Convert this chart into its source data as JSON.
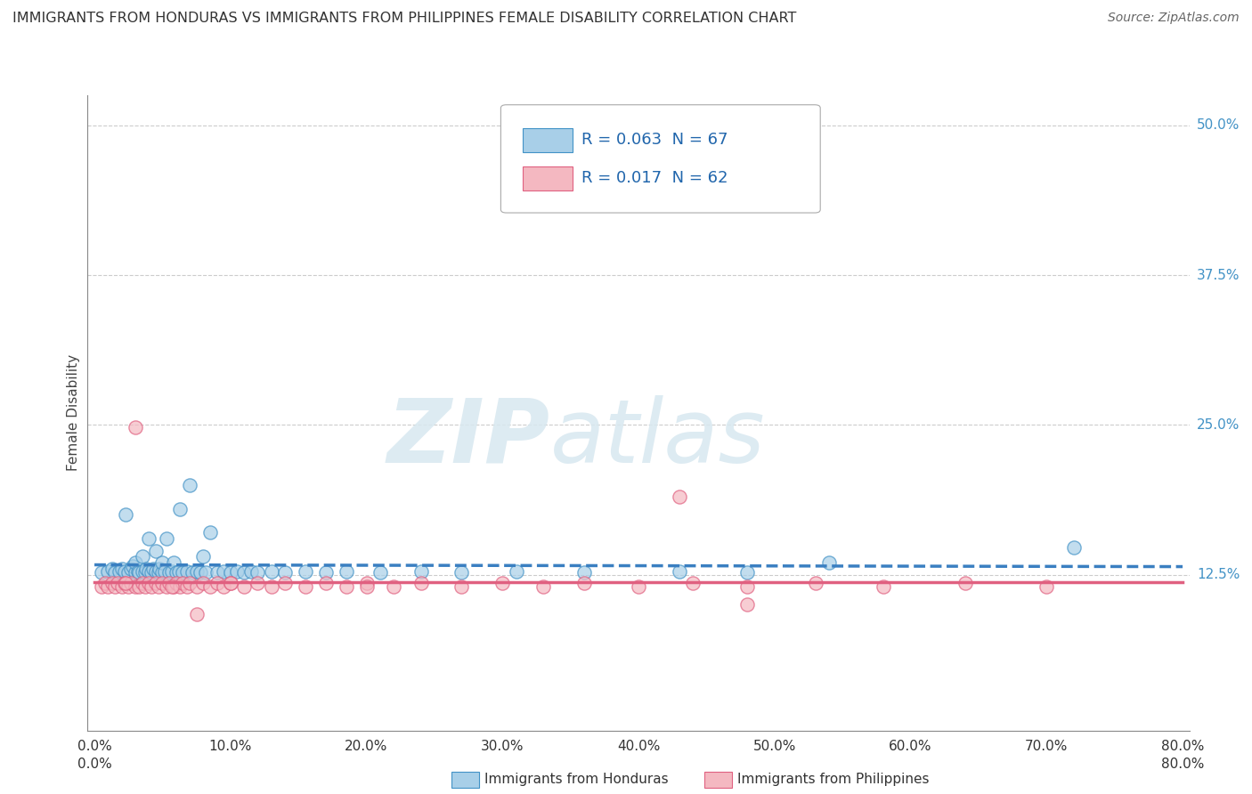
{
  "title": "IMMIGRANTS FROM HONDURAS VS IMMIGRANTS FROM PHILIPPINES FEMALE DISABILITY CORRELATION CHART",
  "source": "Source: ZipAtlas.com",
  "ylabel": "Female Disability",
  "xlim": [
    -0.005,
    0.805
  ],
  "ylim": [
    -0.005,
    0.525
  ],
  "xticks": [
    0.0,
    0.1,
    0.2,
    0.3,
    0.4,
    0.5,
    0.6,
    0.7,
    0.8
  ],
  "xticklabels": [
    "0.0%",
    "10.0%",
    "20.0%",
    "30.0%",
    "40.0%",
    "50.0%",
    "60.0%",
    "70.0%",
    "80.0%"
  ],
  "yticks_right": [
    0.125,
    0.25,
    0.375,
    0.5
  ],
  "yticklabels_right": [
    "12.5%",
    "25.0%",
    "37.5%",
    "50.0%"
  ],
  "grid_color": "#cccccc",
  "background_color": "#ffffff",
  "watermark_zip": "ZIP",
  "watermark_atlas": "atlas",
  "legend_text1": "R = 0.063  N = 67",
  "legend_text2": "R = 0.017  N = 62",
  "legend_label1": "Immigrants from Honduras",
  "legend_label2": "Immigrants from Philippines",
  "color_honduras": "#a8cfe8",
  "color_philippines": "#f4b8c1",
  "edge_honduras": "#4292c6",
  "edge_philippines": "#e06080",
  "trend_color_honduras": "#3a7fc1",
  "trend_color_philippines": "#e06080",
  "honduras_x": [
    0.005,
    0.01,
    0.013,
    0.015,
    0.018,
    0.02,
    0.022,
    0.023,
    0.025,
    0.027,
    0.028,
    0.03,
    0.03,
    0.032,
    0.033,
    0.035,
    0.035,
    0.037,
    0.038,
    0.04,
    0.04,
    0.042,
    0.043,
    0.045,
    0.045,
    0.047,
    0.048,
    0.05,
    0.05,
    0.052,
    0.053,
    0.055,
    0.057,
    0.058,
    0.06,
    0.062,
    0.063,
    0.065,
    0.068,
    0.07,
    0.072,
    0.075,
    0.078,
    0.08,
    0.082,
    0.085,
    0.09,
    0.095,
    0.1,
    0.105,
    0.11,
    0.115,
    0.12,
    0.13,
    0.14,
    0.155,
    0.17,
    0.185,
    0.21,
    0.24,
    0.27,
    0.31,
    0.36,
    0.43,
    0.48,
    0.54,
    0.72
  ],
  "honduras_y": [
    0.127,
    0.128,
    0.13,
    0.127,
    0.128,
    0.13,
    0.128,
    0.175,
    0.127,
    0.13,
    0.132,
    0.127,
    0.135,
    0.128,
    0.127,
    0.128,
    0.14,
    0.127,
    0.13,
    0.128,
    0.155,
    0.127,
    0.13,
    0.128,
    0.145,
    0.127,
    0.13,
    0.127,
    0.135,
    0.128,
    0.155,
    0.127,
    0.128,
    0.135,
    0.127,
    0.128,
    0.18,
    0.127,
    0.128,
    0.2,
    0.127,
    0.128,
    0.127,
    0.14,
    0.127,
    0.16,
    0.127,
    0.128,
    0.127,
    0.128,
    0.127,
    0.128,
    0.127,
    0.128,
    0.127,
    0.128,
    0.127,
    0.128,
    0.127,
    0.128,
    0.127,
    0.128,
    0.127,
    0.128,
    0.127,
    0.135,
    0.148
  ],
  "philippines_x": [
    0.005,
    0.008,
    0.01,
    0.013,
    0.015,
    0.017,
    0.02,
    0.022,
    0.025,
    0.027,
    0.03,
    0.03,
    0.033,
    0.035,
    0.037,
    0.04,
    0.042,
    0.045,
    0.047,
    0.05,
    0.053,
    0.055,
    0.058,
    0.06,
    0.063,
    0.065,
    0.068,
    0.07,
    0.075,
    0.08,
    0.085,
    0.09,
    0.095,
    0.1,
    0.11,
    0.12,
    0.13,
    0.14,
    0.155,
    0.17,
    0.185,
    0.2,
    0.22,
    0.24,
    0.27,
    0.3,
    0.33,
    0.36,
    0.4,
    0.44,
    0.48,
    0.53,
    0.58,
    0.64,
    0.7,
    0.023,
    0.057,
    0.1,
    0.2,
    0.43,
    0.48,
    0.075
  ],
  "philippines_y": [
    0.115,
    0.118,
    0.115,
    0.118,
    0.115,
    0.118,
    0.115,
    0.118,
    0.115,
    0.118,
    0.115,
    0.248,
    0.115,
    0.118,
    0.115,
    0.118,
    0.115,
    0.118,
    0.115,
    0.118,
    0.115,
    0.118,
    0.115,
    0.118,
    0.115,
    0.118,
    0.115,
    0.118,
    0.115,
    0.118,
    0.115,
    0.118,
    0.115,
    0.118,
    0.115,
    0.118,
    0.115,
    0.118,
    0.115,
    0.118,
    0.115,
    0.118,
    0.115,
    0.118,
    0.115,
    0.118,
    0.115,
    0.118,
    0.115,
    0.118,
    0.115,
    0.118,
    0.115,
    0.118,
    0.115,
    0.118,
    0.115,
    0.118,
    0.115,
    0.19,
    0.1,
    0.092
  ]
}
